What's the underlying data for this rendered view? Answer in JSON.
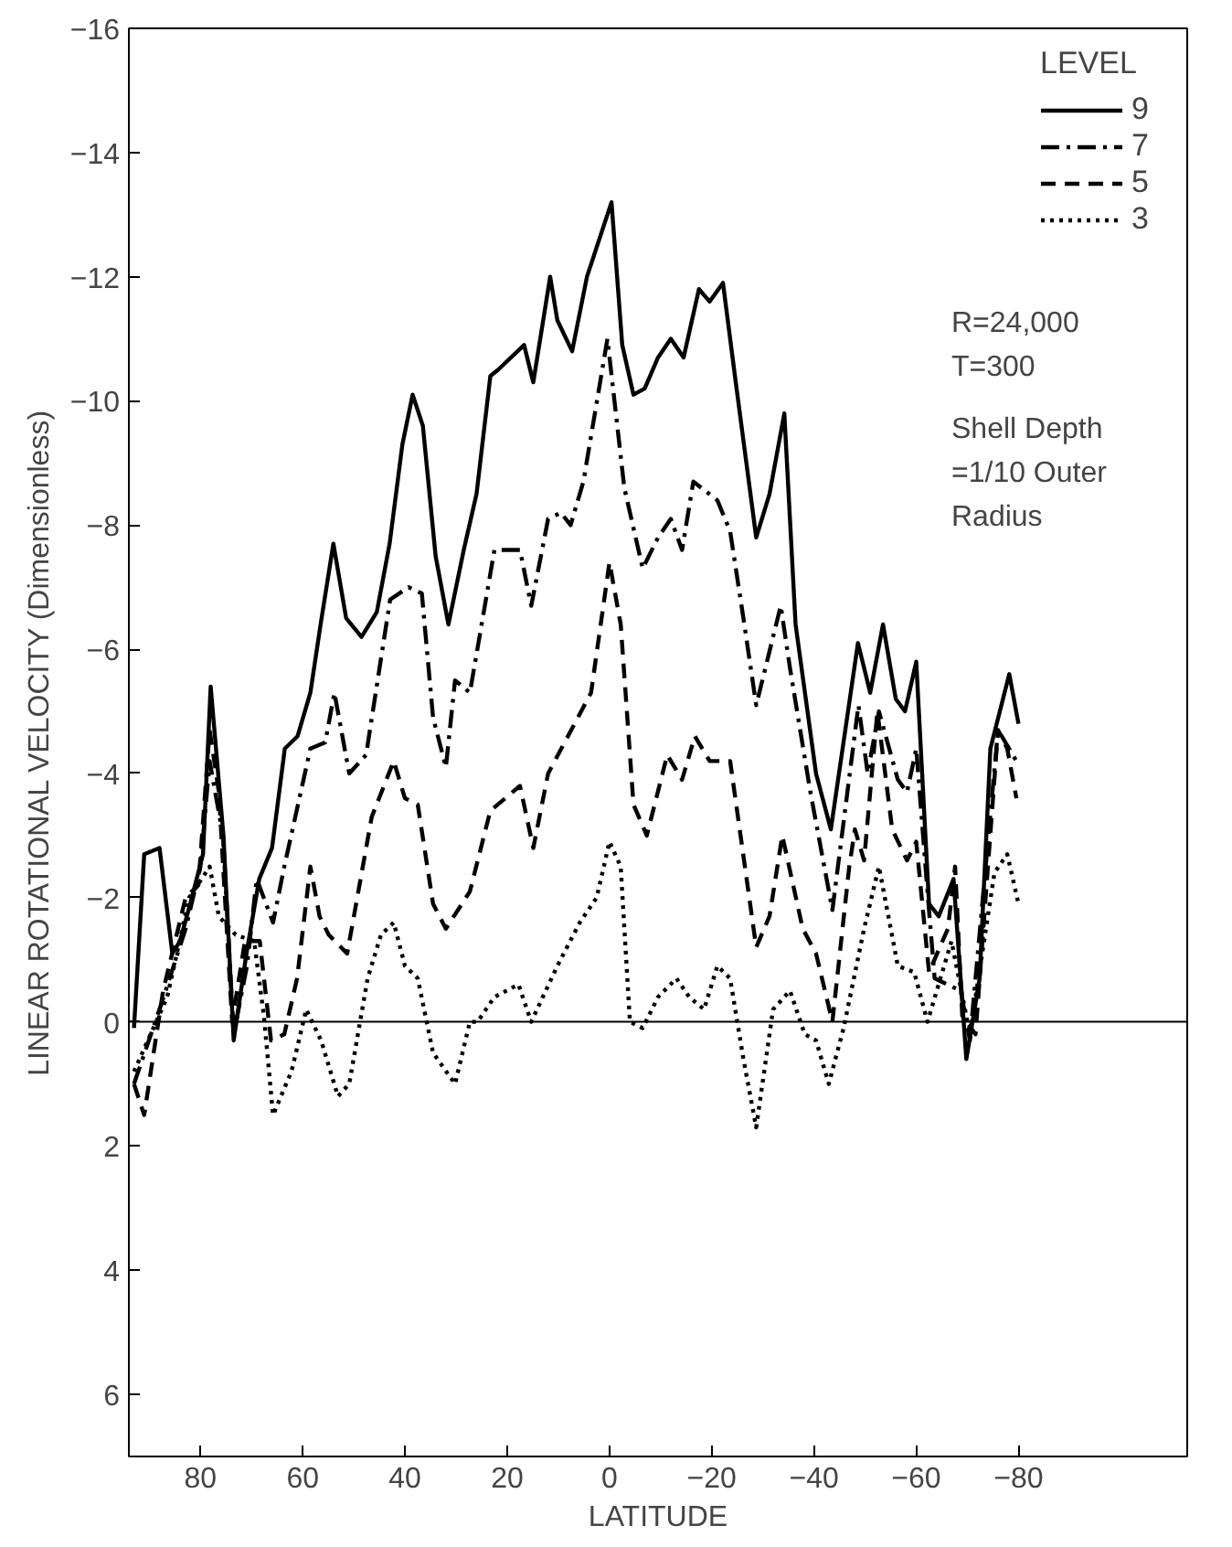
{
  "chart_data": {
    "type": "line",
    "xlabel": "LATITUDE",
    "ylabel": "LINEAR ROTATIONAL VELOCITY (Dimensionless)",
    "legend_title": "LEVEL",
    "legend": "top right",
    "grid": false,
    "xlim": [
      94,
      -113
    ],
    "ylim": [
      7,
      -16
    ],
    "xticks": [
      80,
      60,
      40,
      20,
      0,
      -20,
      -40,
      -60,
      -80
    ],
    "yticks": [
      -16,
      -14,
      -12,
      -10,
      -8,
      -6,
      -4,
      -2,
      0,
      2,
      4,
      6
    ],
    "ref_lines": [
      {
        "axis": "y",
        "value": 0,
        "color": "#000000",
        "line_style": "solid"
      }
    ],
    "annotations": [
      "R=24,000",
      "T=300",
      "Shell Depth",
      "=1/10 Outer",
      "Radius"
    ],
    "series": [
      {
        "name": "9",
        "color": "#000000",
        "line_style": "solid",
        "x": [
          93,
          91,
          88,
          85.5,
          84,
          82,
          79.5,
          78,
          75.5,
          73.5,
          71,
          68.5,
          66,
          63.5,
          61,
          58.5,
          56.5,
          54,
          51.5,
          48.5,
          45.5,
          43,
          40.5,
          38.5,
          36.5,
          34,
          31.5,
          28.5,
          26,
          23.3,
          21.8,
          16.7,
          14.9,
          11.6,
          10.2,
          7.3,
          4.4,
          -0.4,
          -2.5,
          -4.7,
          -6.9,
          -9.5,
          -12,
          -14.5,
          -17.5,
          -19.6,
          -22.2,
          -24.7,
          -28.7,
          -31.3,
          -34.2,
          -36.4,
          -40.4,
          -43.3,
          -48.6,
          -51,
          -53.5,
          -56,
          -57.8,
          -60,
          -62.5,
          -64.4,
          -67.3,
          -69.8,
          -72.4,
          -74.5,
          -78.2,
          -80
        ],
        "values": [
          0.1,
          -2.7,
          -2.8,
          -1.1,
          -1.3,
          -1.9,
          -2.7,
          -5.4,
          -3.0,
          0.3,
          -1.1,
          -2.3,
          -2.8,
          -4.4,
          -4.6,
          -5.3,
          -6.4,
          -7.7,
          -6.5,
          -6.2,
          -6.6,
          -7.7,
          -9.3,
          -10.1,
          -9.6,
          -7.5,
          -6.4,
          -7.6,
          -8.5,
          -10.4,
          -10.5,
          -10.9,
          -10.3,
          -12.0,
          -11.3,
          -10.8,
          -12.0,
          -13.2,
          -10.9,
          -10.1,
          -10.2,
          -10.7,
          -11.0,
          -10.7,
          -11.8,
          -11.6,
          -11.9,
          -10.3,
          -7.8,
          -8.5,
          -9.8,
          -6.4,
          -4.0,
          -3.1,
          -6.1,
          -5.3,
          -6.4,
          -5.2,
          -5.0,
          -5.8,
          -1.9,
          -1.7,
          -2.3,
          0.6,
          -0.7,
          -4.4,
          -5.6,
          -4.8
        ]
      },
      {
        "name": "7",
        "color": "#000000",
        "line_style": "dashdot",
        "x": [
          93,
          87.6,
          82.9,
          80,
          78.2,
          75.6,
          73.5,
          70.9,
          69,
          65.8,
          63.6,
          58.5,
          55.6,
          53.8,
          50.9,
          47.6,
          42.9,
          39.3,
          36.7,
          34.5,
          32,
          30.2,
          27.3,
          22.5,
          17.5,
          15.3,
          12,
          9.5,
          7.6,
          5.1,
          0.4,
          -2.9,
          -6.5,
          -9.5,
          -12,
          -14.2,
          -16.4,
          -21.1,
          -23.6,
          -26.2,
          -28.7,
          -33.5,
          -35.3,
          -39.3,
          -43.6,
          -48.7,
          -50.5,
          -52.7,
          -56.4,
          -58.2,
          -60,
          -62.2,
          -63.6,
          -68.7,
          -70.5,
          -76,
          -79.6
        ],
        "values": [
          1.0,
          -0.3,
          -1.5,
          -2.5,
          -4.2,
          -3.0,
          0.2,
          -0.9,
          -2.3,
          -1.6,
          -2.5,
          -4.4,
          -4.5,
          -5.3,
          -4.0,
          -4.3,
          -6.8,
          -7.0,
          -6.9,
          -4.9,
          -4.1,
          -5.5,
          -5.3,
          -7.6,
          -7.6,
          -6.7,
          -8.1,
          -8.2,
          -8.0,
          -8.7,
          -11.0,
          -8.6,
          -7.3,
          -7.8,
          -8.1,
          -7.6,
          -8.7,
          -8.4,
          -7.9,
          -6.5,
          -5.1,
          -6.7,
          -5.7,
          -3.7,
          -1.8,
          -5.1,
          -4.0,
          -5.0,
          -3.9,
          -3.7,
          -4.4,
          -2.1,
          -0.7,
          -0.5,
          0.3,
          -4.7,
          -4.2
        ]
      },
      {
        "name": "5",
        "color": "#000000",
        "line_style": "dashed",
        "x": [
          93,
          91,
          87.3,
          82.9,
          80.4,
          78.2,
          76.4,
          73.8,
          71.3,
          68.4,
          66.2,
          63.6,
          61.1,
          58.5,
          56.7,
          54.9,
          51.3,
          46.5,
          42.2,
          40,
          37.5,
          34.5,
          32,
          27.3,
          23.3,
          17.5,
          14.9,
          12,
          3.6,
          0,
          -2.2,
          -4.7,
          -7.3,
          -11.3,
          -14.2,
          -16.7,
          -19.6,
          -23.6,
          -28.7,
          -31.3,
          -33.8,
          -37.8,
          -40.4,
          -43.6,
          -46.9,
          -48,
          -49.8,
          -52.4,
          -55.3,
          -58.2,
          -60,
          -62.5,
          -66.2,
          -67.6,
          -69,
          -71.6,
          -76,
          -77.8,
          -79.6
        ],
        "values": [
          1.0,
          1.5,
          -0.5,
          -2.0,
          -2.2,
          -4.7,
          -3.7,
          0.0,
          -1.3,
          -1.3,
          0.3,
          0.2,
          -0.7,
          -2.5,
          -1.7,
          -1.4,
          -1.1,
          -3.3,
          -4.2,
          -3.6,
          -3.5,
          -1.9,
          -1.5,
          -2.1,
          -3.4,
          -3.8,
          -2.8,
          -4.0,
          -5.3,
          -7.4,
          -6.4,
          -3.5,
          -3.0,
          -4.3,
          -3.9,
          -4.6,
          -4.2,
          -4.2,
          -1.2,
          -1.7,
          -3.0,
          -1.5,
          -1.1,
          0.0,
          -2.5,
          -3.1,
          -2.6,
          -5.0,
          -3.1,
          -2.6,
          -2.9,
          -0.8,
          -1.5,
          -2.5,
          -0.1,
          0.2,
          -4.7,
          -4.4,
          -3.6
        ]
      },
      {
        "name": "3",
        "color": "#000000",
        "line_style": "dotted",
        "x": [
          93,
          86.5,
          82.2,
          78.2,
          76.4,
          73.1,
          69.5,
          67.6,
          65.8,
          62.2,
          59.3,
          56.4,
          53.1,
          50.9,
          47.3,
          44.7,
          42.2,
          40,
          37.5,
          34.5,
          30.2,
          27.3,
          25.8,
          22.5,
          17.8,
          15.3,
          10.2,
          5.8,
          2.5,
          0,
          -2.2,
          -4,
          -6.5,
          -9.5,
          -13.1,
          -15.6,
          -18.5,
          -21.1,
          -23.6,
          -26.2,
          -28.7,
          -32,
          -35.3,
          -38.2,
          -40.4,
          -42.9,
          -45.8,
          -49.8,
          -52.7,
          -56.4,
          -59.6,
          -62.2,
          -66.9,
          -70.5,
          -75.3,
          -77.8,
          -80
        ],
        "values": [
          0.8,
          -0.4,
          -2.0,
          -2.5,
          -1.7,
          -1.4,
          -1.3,
          -0.1,
          1.5,
          0.8,
          -0.2,
          0.3,
          1.2,
          1.0,
          -0.7,
          -1.4,
          -1.6,
          -0.9,
          -0.7,
          0.5,
          1.0,
          0.0,
          0.0,
          -0.4,
          -0.6,
          0.0,
          -0.9,
          -1.6,
          -2.0,
          -2.9,
          -2.5,
          0.0,
          0.1,
          -0.4,
          -0.7,
          -0.4,
          -0.2,
          -0.9,
          -0.7,
          0.6,
          1.7,
          -0.2,
          -0.5,
          0.2,
          0.3,
          1.0,
          0.1,
          -1.5,
          -2.5,
          -0.9,
          -0.8,
          0.0,
          -1.3,
          0.2,
          -2.4,
          -2.7,
          -1.9
        ]
      }
    ]
  }
}
